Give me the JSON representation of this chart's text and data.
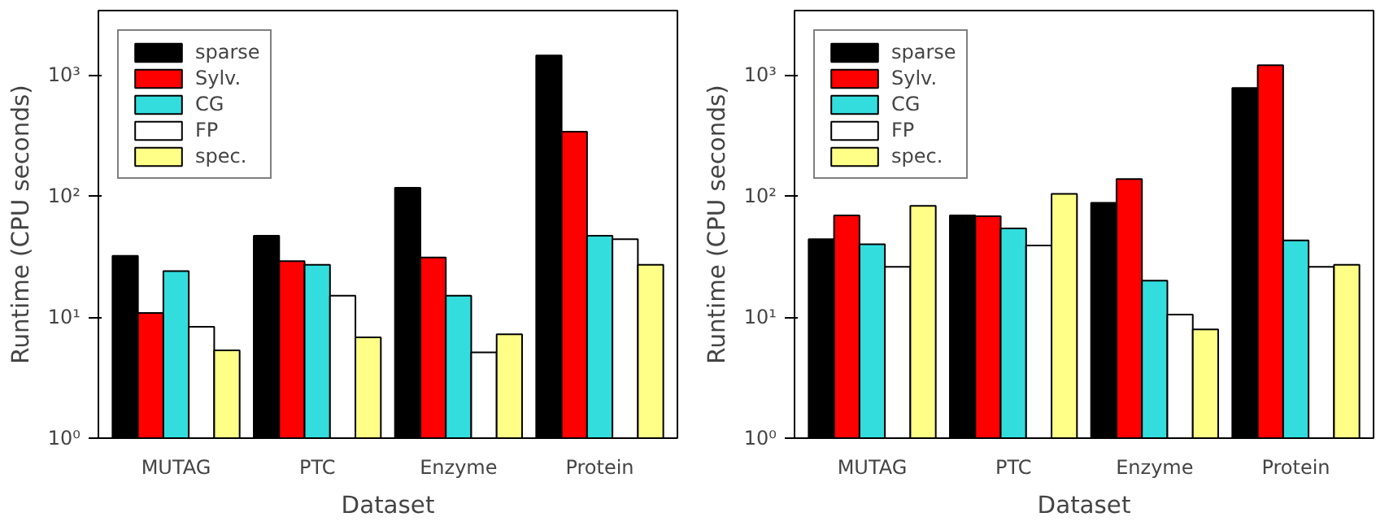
{
  "chart_data": [
    {
      "type": "bar",
      "xlabel": "Dataset",
      "ylabel": "Runtime (CPU seconds)",
      "categories": [
        "MUTAG",
        "PTC",
        "Enzyme",
        "Protein"
      ],
      "log": "y",
      "ylim": [
        1,
        3400
      ],
      "yticks": [
        {
          "value": 1,
          "label": "10⁰"
        },
        {
          "value": 10,
          "label": "10¹"
        },
        {
          "value": 100,
          "label": "10²"
        },
        {
          "value": 1000,
          "label": "10³"
        }
      ],
      "grid": false,
      "legend": "top left",
      "series": [
        {
          "name": "sparse",
          "color": "#000000",
          "values": [
            32,
            47,
            117,
            1450
          ]
        },
        {
          "name": "Sylv.",
          "color": "#ff0000",
          "values": [
            10.8,
            29,
            31,
            340
          ]
        },
        {
          "name": "CG",
          "color": "#33dddd",
          "values": [
            24,
            27,
            15,
            47
          ]
        },
        {
          "name": "FP",
          "color": "#ffffff",
          "values": [
            8.3,
            15,
            5.1,
            44
          ]
        },
        {
          "name": "spec.",
          "color": "#ffff88",
          "values": [
            5.3,
            6.8,
            7.2,
            27
          ]
        }
      ]
    },
    {
      "type": "bar",
      "xlabel": "Dataset",
      "ylabel": "Runtime (CPU seconds)",
      "categories": [
        "MUTAG",
        "PTC",
        "Enzyme",
        "Protein"
      ],
      "log": "y",
      "ylim": [
        1,
        3400
      ],
      "yticks": [
        {
          "value": 1,
          "label": "10⁰"
        },
        {
          "value": 10,
          "label": "10¹"
        },
        {
          "value": 100,
          "label": "10²"
        },
        {
          "value": 1000,
          "label": "10³"
        }
      ],
      "grid": false,
      "legend": "top left",
      "series": [
        {
          "name": "sparse",
          "color": "#000000",
          "values": [
            44,
            69,
            88,
            780
          ]
        },
        {
          "name": "Sylv.",
          "color": "#ff0000",
          "values": [
            69,
            68,
            138,
            1200
          ]
        },
        {
          "name": "CG",
          "color": "#33dddd",
          "values": [
            40,
            54,
            20,
            43
          ]
        },
        {
          "name": "FP",
          "color": "#ffffff",
          "values": [
            26,
            39,
            10.5,
            26
          ]
        },
        {
          "name": "spec.",
          "color": "#ffff88",
          "values": [
            83,
            104,
            7.9,
            27
          ]
        }
      ]
    }
  ]
}
